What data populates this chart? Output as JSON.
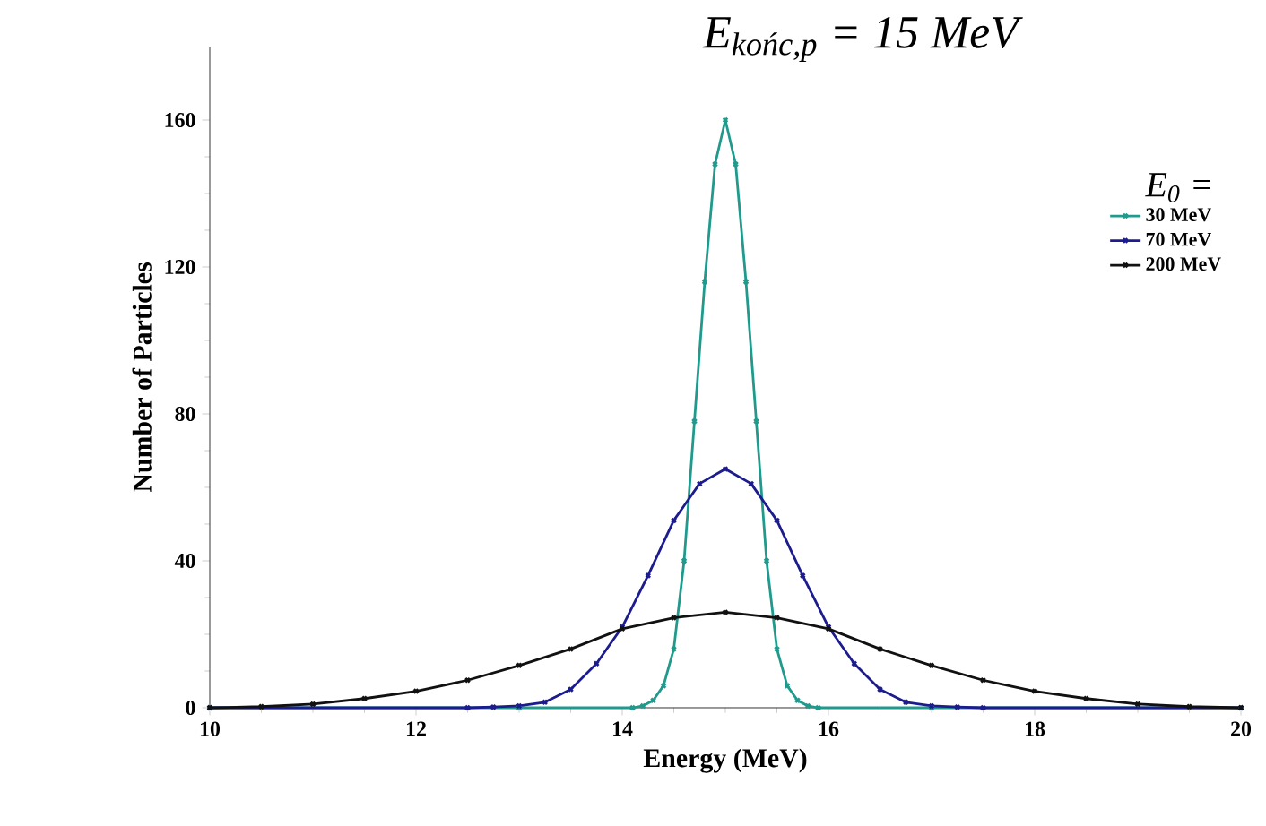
{
  "chart_data": {
    "type": "line",
    "title": "E$_{końc,p}$ = 15 MeV",
    "xlabel": "Energy (MeV)",
    "ylabel": "Number of Particles",
    "legend_title": "E$_{0}$ =",
    "xlim": [
      10,
      20
    ],
    "xticks": [
      10,
      12,
      14,
      16,
      18,
      20
    ],
    "ylim": [
      0,
      180
    ],
    "yticks": [
      0,
      40,
      80,
      120,
      160
    ],
    "grid": false,
    "legend": "right",
    "marker": "cross",
    "line_style": "solid",
    "series": [
      {
        "name": "30 MeV",
        "color": "#1f9a8c",
        "x": [
          10,
          13,
          14.1,
          14.2,
          14.3,
          14.4,
          14.5,
          14.6,
          14.7,
          14.8,
          14.9,
          15,
          15.1,
          15.2,
          15.3,
          15.4,
          15.5,
          15.6,
          15.7,
          15.8,
          15.9,
          17,
          20
        ],
        "values": [
          0,
          0,
          0,
          0.5,
          2,
          6,
          16,
          40,
          78,
          116,
          148,
          160,
          148,
          116,
          78,
          40,
          16,
          6,
          2,
          0.5,
          0,
          0,
          0
        ]
      },
      {
        "name": "70 MeV",
        "color": "#1c1c8e",
        "x": [
          10,
          12.5,
          12.75,
          13,
          13.25,
          13.5,
          13.75,
          14,
          14.25,
          14.5,
          14.75,
          15,
          15.25,
          15.5,
          15.75,
          16,
          16.25,
          16.5,
          16.75,
          17,
          17.25,
          17.5,
          20
        ],
        "values": [
          0,
          0,
          0.2,
          0.5,
          1.5,
          5,
          12,
          22,
          36,
          51,
          61,
          65,
          61,
          51,
          36,
          22,
          12,
          5,
          1.5,
          0.5,
          0.2,
          0,
          0
        ]
      },
      {
        "name": "200 MeV",
        "color": "#111111",
        "x": [
          10,
          10.5,
          11,
          11.5,
          12,
          12.5,
          13,
          13.5,
          14,
          14.5,
          15,
          15.5,
          16,
          16.5,
          17,
          17.5,
          18,
          18.5,
          19,
          19.5,
          20
        ],
        "values": [
          0,
          0.3,
          1,
          2.5,
          4.5,
          7.5,
          11.5,
          16,
          21.5,
          24.5,
          26,
          24.5,
          21.5,
          16,
          11.5,
          7.5,
          4.5,
          2.5,
          1,
          0.3,
          0
        ]
      }
    ]
  }
}
